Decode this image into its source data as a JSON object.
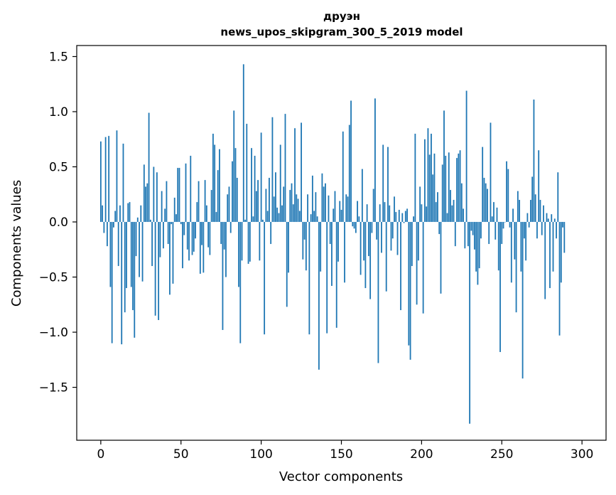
{
  "chart_data": {
    "type": "bar",
    "title_line1": "друэн",
    "title_line2": "news_upos_skipgram_300_5_2019 model",
    "xlabel": "Vector components",
    "ylabel": "Components values",
    "xlim": [
      -15,
      315
    ],
    "ylim": [
      -1.98,
      1.6
    ],
    "x_ticks": [
      0,
      50,
      100,
      150,
      200,
      250,
      300
    ],
    "x_tick_labels": [
      "0",
      "50",
      "100",
      "150",
      "200",
      "250",
      "300"
    ],
    "y_ticks": [
      1.5,
      1.0,
      0.5,
      0.0,
      -0.5,
      -1.0,
      -1.5
    ],
    "y_tick_labels": [
      "1.5",
      "1.0",
      "0.5",
      "0.0",
      "−0.5",
      "−1.0",
      "−1.5"
    ],
    "bar_color": "#1f77b4",
    "values": [
      0.73,
      0.15,
      -0.1,
      0.77,
      -0.22,
      0.78,
      -0.59,
      -1.1,
      -0.05,
      0.1,
      0.83,
      -0.4,
      0.15,
      -1.11,
      0.71,
      -0.82,
      -0.6,
      0.17,
      0.18,
      -0.59,
      -0.8,
      -1.05,
      -0.31,
      0.04,
      -0.5,
      0.15,
      -0.54,
      0.52,
      0.32,
      0.35,
      0.99,
      0.02,
      -0.4,
      0.5,
      -0.85,
      0.45,
      -0.89,
      -0.32,
      0.28,
      -0.24,
      0.12,
      0.37,
      -0.2,
      -0.66,
      -0.02,
      -0.56,
      0.22,
      0.07,
      0.49,
      0.49,
      -0.02,
      -0.42,
      -0.12,
      0.53,
      -0.25,
      -0.35,
      0.6,
      -0.3,
      -0.27,
      -0.15,
      0.18,
      0.37,
      -0.47,
      -0.21,
      -0.46,
      0.38,
      0.15,
      -0.23,
      -0.3,
      0.29,
      0.8,
      0.7,
      0.09,
      0.47,
      0.66,
      -0.2,
      -0.98,
      -0.25,
      -0.5,
      0.25,
      0.32,
      -0.1,
      0.55,
      1.01,
      0.67,
      0.4,
      -0.59,
      -1.1,
      -0.35,
      1.43,
      0.02,
      0.89,
      -0.38,
      -0.36,
      0.67,
      0.05,
      0.6,
      0.28,
      0.38,
      -0.35,
      0.81,
      0.02,
      -1.02,
      0.3,
      0.1,
      0.4,
      -0.2,
      0.95,
      0.23,
      0.45,
      0.13,
      0.08,
      0.7,
      0.15,
      0.32,
      0.98,
      -0.77,
      -0.46,
      0.29,
      0.35,
      0.16,
      0.85,
      0.25,
      0.21,
      0.1,
      0.9,
      -0.34,
      -0.16,
      -0.44,
      0.25,
      -1.02,
      0.07,
      0.42,
      0.1,
      0.27,
      0.05,
      -1.34,
      -0.45,
      0.44,
      0.32,
      0.35,
      -1.01,
      0.24,
      -0.2,
      -0.58,
      0.12,
      0.28,
      -0.96,
      -0.36,
      0.19,
      0.11,
      0.82,
      -0.55,
      0.25,
      0.23,
      0.88,
      1.1,
      -0.04,
      -0.06,
      -0.1,
      0.19,
      0.05,
      -0.48,
      0.48,
      -0.35,
      -0.6,
      0.16,
      -0.31,
      -0.7,
      -0.1,
      0.3,
      1.12,
      -0.16,
      -1.28,
      0.16,
      -0.28,
      0.7,
      0.18,
      -0.63,
      0.68,
      0.15,
      -0.26,
      -0.15,
      0.23,
      0.09,
      -0.3,
      0.11,
      -0.8,
      0.08,
      -0.01,
      0.1,
      0.12,
      -1.12,
      -1.25,
      -0.4,
      0.05,
      0.8,
      -0.75,
      -0.35,
      0.32,
      0.16,
      -0.83,
      0.75,
      0.14,
      0.85,
      0.61,
      0.8,
      0.43,
      0.62,
      0.18,
      0.27,
      -0.11,
      -0.65,
      0.52,
      1.01,
      0.6,
      0.08,
      0.63,
      0.29,
      0.15,
      0.2,
      -0.22,
      0.58,
      0.62,
      0.65,
      0.35,
      0.12,
      -0.24,
      1.19,
      -0.22,
      -1.83,
      -0.08,
      -0.12,
      -0.25,
      -0.45,
      -0.57,
      -0.42,
      -0.15,
      0.68,
      0.4,
      0.35,
      0.3,
      -0.2,
      0.9,
      0.05,
      0.18,
      -0.16,
      0.13,
      -0.44,
      -1.18,
      -0.2,
      -0.06,
      0.0,
      0.55,
      0.48,
      -0.05,
      -0.55,
      0.12,
      -0.34,
      -0.82,
      0.28,
      0.2,
      -0.45,
      -1.42,
      -0.15,
      -0.35,
      0.08,
      -0.05,
      0.2,
      0.41,
      1.11,
      0.25,
      -0.15,
      0.65,
      0.2,
      -0.12,
      0.15,
      -0.7,
      0.08,
      0.03,
      -0.6,
      0.07,
      -0.45,
      0.03,
      -0.15,
      0.45,
      -1.03,
      -0.55,
      -0.05,
      -0.28
    ]
  }
}
